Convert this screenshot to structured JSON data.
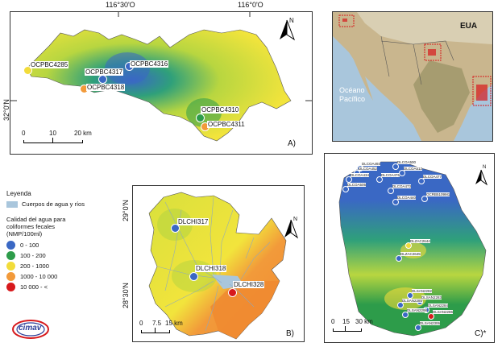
{
  "coords": {
    "lon_a1": "116°30'O",
    "lon_a2": "116°0'O",
    "lat_a": "32°0'N",
    "lat_b1": "29°0'N",
    "lat_b2": "28°30'N"
  },
  "panel_a": {
    "letter": "A)",
    "sites": [
      {
        "id": "OCPBC4285",
        "color": "#f2dc3a"
      },
      {
        "id": "OCPBC4317",
        "color": "#3a68c4"
      },
      {
        "id": "OCPBC4316",
        "color": "#3a68c4"
      },
      {
        "id": "OCPBC4318",
        "color": "#f29a3a"
      },
      {
        "id": "OCPBC4310",
        "color": "#2d9c4a"
      },
      {
        "id": "OCPBC4311",
        "color": "#f29a3a"
      }
    ],
    "scale": [
      "0",
      "10",
      "20 km"
    ]
  },
  "inset": {
    "country": "EUA",
    "ocean_line1": "Océano",
    "ocean_line2": "Pacífico"
  },
  "legend": {
    "title": "Leyenda",
    "water_label": "Cuerpos de agua y ríos",
    "quality_title_1": "Calidad del agua para",
    "quality_title_2": "coliformes fecales",
    "quality_title_3": "(NMP/100ml)",
    "classes": [
      {
        "label": "0 - 100",
        "color": "#3a68c4"
      },
      {
        "label": "100 - 200",
        "color": "#2d9c4a"
      },
      {
        "label": "200 - 1000",
        "color": "#f2dc3a"
      },
      {
        "label": "1000 - 10 000",
        "color": "#f29a3a"
      },
      {
        "label": "10 000 - <",
        "color": "#d7191c"
      }
    ]
  },
  "panel_b": {
    "letter": "B)",
    "sites": [
      {
        "id": "DLCHI317",
        "color": "#3a68c4"
      },
      {
        "id": "DLCHI318",
        "color": "#3a68c4"
      },
      {
        "id": "DLCHI328",
        "color": "#d7191c"
      }
    ],
    "scale": [
      "0",
      "7.5",
      "15 km"
    ]
  },
  "panel_c": {
    "letter": "C)*",
    "sites": [
      {
        "id": "DLCOA493",
        "color": "#3a68c4"
      },
      {
        "id": "DLCOA500",
        "color": "#3a68c4"
      },
      {
        "id": "DLCOA452",
        "color": "#3a68c4"
      },
      {
        "id": "DLCOA512",
        "color": "#3a68c4"
      },
      {
        "id": "DLCOA434",
        "color": "#3a68c4"
      },
      {
        "id": "DLCOA476",
        "color": "#3a68c4"
      },
      {
        "id": "DLCOA477",
        "color": "#3a68c4"
      },
      {
        "id": "DLCOA505",
        "color": "#3a68c4"
      },
      {
        "id": "DLCOA473",
        "color": "#3a68c4"
      },
      {
        "id": "DLCOA440",
        "color": "#3a68c4"
      },
      {
        "id": "OCRB5109M1",
        "color": "#3a68c4"
      },
      {
        "id": "DLZAC2644",
        "color": "#f2dc3a"
      },
      {
        "id": "DLZAC2645",
        "color": "#3a68c4"
      },
      {
        "id": "DLSAN2282",
        "color": "#3a68c4"
      },
      {
        "id": "DLSAN2283",
        "color": "#3a68c4"
      },
      {
        "id": "DLSAN2284",
        "color": "#3a68c4"
      },
      {
        "id": "DLSAN2285",
        "color": "#3a68c4"
      },
      {
        "id": "DLSAN2286",
        "color": "#d7191c"
      },
      {
        "id": "DLSAN2298",
        "color": "#3a68c4"
      },
      {
        "id": "DLSAN2306",
        "color": "#3a68c4"
      }
    ],
    "scale": [
      "0",
      "15",
      "30 km"
    ]
  },
  "north_label": "N",
  "logo_text": "cimav"
}
